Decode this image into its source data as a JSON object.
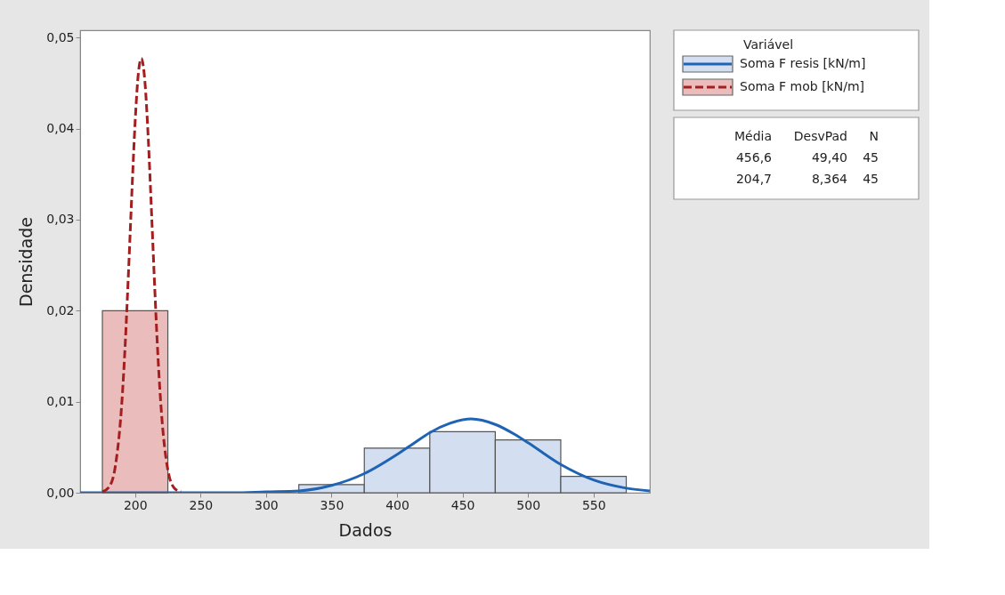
{
  "chart_data": {
    "type": "histogram",
    "xlabel": "Dados",
    "ylabel": "Densidade",
    "legend_title": "Variável",
    "legend": "right",
    "grid": false,
    "xlim": [
      158,
      593
    ],
    "xticks": [
      200,
      250,
      300,
      350,
      400,
      450,
      500,
      550
    ],
    "ylim": [
      0,
      0.0508
    ],
    "yticks": [
      {
        "value": 0,
        "label": "0,00"
      },
      {
        "value": 0.01,
        "label": "0,01"
      },
      {
        "value": 0.02,
        "label": "0,02"
      },
      {
        "value": 0.03,
        "label": "0,03"
      },
      {
        "value": 0.04,
        "label": "0,04"
      },
      {
        "value": 0.05,
        "label": "0,05"
      }
    ],
    "series": [
      {
        "name": "Soma F resis [kN/m]",
        "color": "#d3dff0",
        "bins": [
          325,
          375,
          425,
          475,
          525,
          575
        ],
        "values": [
          0.0009,
          0.0049,
          0.0067,
          0.0058,
          0.0018
        ]
      },
      {
        "name": "Soma F mob [kN/m]",
        "color": "#ebbcbc",
        "bins": [
          175,
          225
        ],
        "values": [
          0.02
        ]
      },
      {
        "type": "line",
        "color": "#1f63b5",
        "line_style": "solid",
        "x": [
          158,
          200,
          250,
          275,
          300,
          325,
          350,
          375,
          400,
          412.5,
          425,
          440,
          456.6,
          475,
          490,
          500,
          525,
          550,
          575,
          593
        ],
        "values": [
          0,
          0,
          0,
          0,
          0.0001,
          0.0002,
          0.0008,
          0.0021,
          0.0042,
          0.0054,
          0.0066,
          0.0076,
          0.0081,
          0.0075,
          0.0064,
          0.0055,
          0.0031,
          0.0014,
          0.0005,
          0.0002
        ]
      },
      {
        "type": "line",
        "color": "#a31f1f",
        "line_style": "dashed",
        "x": [
          175,
          180,
          185,
          190,
          192.5,
          195,
          197.5,
          200,
          202.5,
          204.7,
          207.5,
          210,
          212.5,
          215,
          217.5,
          220,
          225,
          230,
          235
        ],
        "values": [
          0.0001,
          0.0006,
          0.003,
          0.0102,
          0.0165,
          0.0244,
          0.0329,
          0.0407,
          0.0461,
          0.0477,
          0.0451,
          0.039,
          0.0309,
          0.0224,
          0.0148,
          0.009,
          0.0025,
          0.0005,
          0.0001
        ]
      }
    ],
    "annotations": [
      "Média",
      "DesvPad",
      "N",
      "456,6",
      "49,40",
      "45",
      "204,7",
      "8,364",
      "45"
    ]
  }
}
